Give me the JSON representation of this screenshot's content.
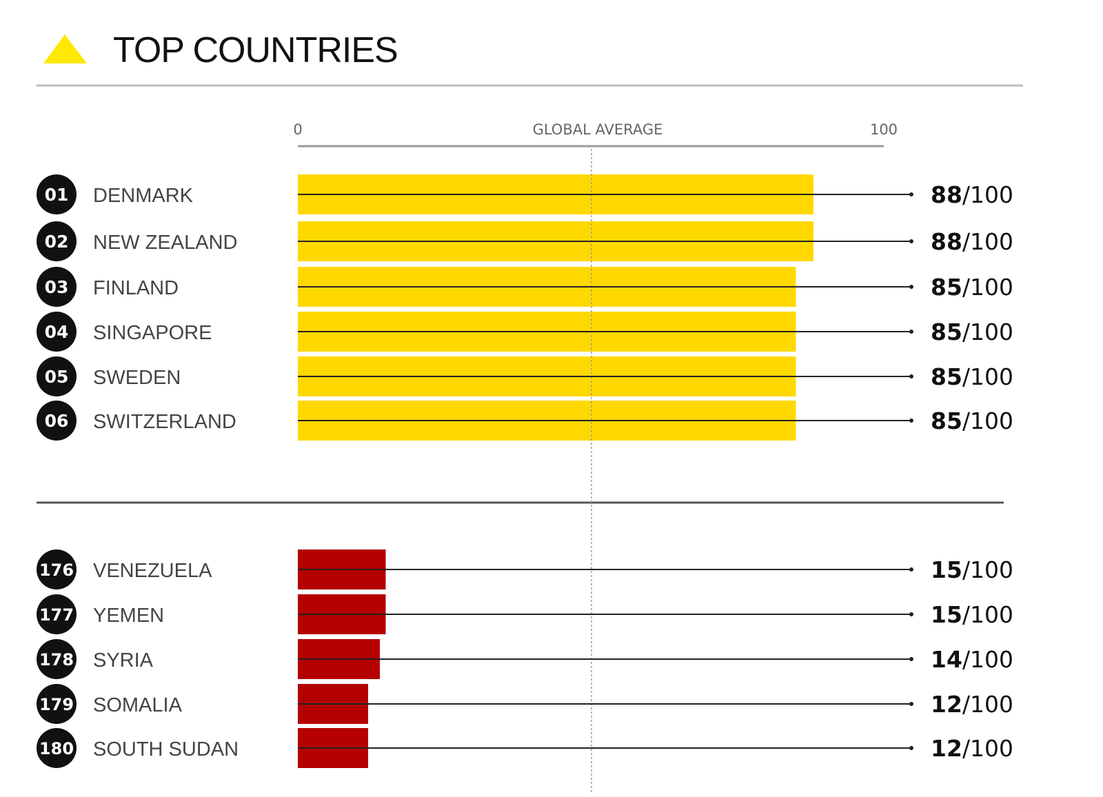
{
  "title": "TOP COUNTRIES",
  "colors": {
    "icon": "#ffe900",
    "top_bar": "#ffd800",
    "bottom_bar": "#b40000",
    "badge": "#111111"
  },
  "chart_data": {
    "type": "bar",
    "orientation": "horizontal",
    "title": "TOP COUNTRIES",
    "xlim": [
      0,
      100
    ],
    "axis_ticks": [
      "0",
      "100"
    ],
    "reference_label": "GLOBAL AVERAGE",
    "score_suffix": "/100",
    "groups": [
      {
        "color": "#ffd800",
        "rows": [
          {
            "rank": "01",
            "country": "DENMARK",
            "value": 88
          },
          {
            "rank": "02",
            "country": "NEW ZEALAND",
            "value": 88
          },
          {
            "rank": "03",
            "country": "FINLAND",
            "value": 85
          },
          {
            "rank": "04",
            "country": "SINGAPORE",
            "value": 85
          },
          {
            "rank": "05",
            "country": "SWEDEN",
            "value": 85
          },
          {
            "rank": "06",
            "country": "SWITZERLAND",
            "value": 85
          }
        ]
      },
      {
        "color": "#b40000",
        "rows": [
          {
            "rank": "176",
            "country": "VENEZUELA",
            "value": 15
          },
          {
            "rank": "177",
            "country": "YEMEN",
            "value": 15
          },
          {
            "rank": "178",
            "country": "SYRIA",
            "value": 14
          },
          {
            "rank": "179",
            "country": "SOMALIA",
            "value": 12
          },
          {
            "rank": "180",
            "country": "SOUTH SUDAN",
            "value": 12
          }
        ]
      }
    ]
  }
}
